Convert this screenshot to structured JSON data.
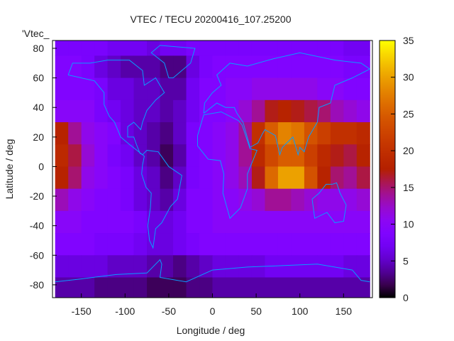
{
  "chart_data": {
    "type": "heatmap",
    "title": "VTEC / TECU 20200416_107.25200",
    "xlabel": "Longitude / deg",
    "ylabel": "Latitude / deg",
    "legend_label": "'Vtec_",
    "legend_placement": "top-left",
    "xlim": [
      -183,
      183
    ],
    "ylim": [
      -88.7,
      85.3
    ],
    "xticks": [
      -150,
      -100,
      -50,
      0,
      50,
      100,
      150
    ],
    "yticks": [
      -80,
      -60,
      -40,
      -20,
      0,
      20,
      40,
      60,
      80
    ],
    "colorbar": {
      "min": 0,
      "max": 35,
      "ticks": [
        0,
        5,
        10,
        15,
        20,
        25,
        30,
        35
      ]
    },
    "grid": false,
    "lon_centers": [
      -172.5,
      -157.5,
      -142.5,
      -127.5,
      -112.5,
      -97.5,
      -82.5,
      -67.5,
      -52.5,
      -37.5,
      -22.5,
      -7.5,
      7.5,
      22.5,
      37.5,
      52.5,
      67.5,
      82.5,
      97.5,
      112.5,
      127.5,
      142.5,
      157.5,
      172.5
    ],
    "lat_centers": [
      82.5,
      67.5,
      52.5,
      37.5,
      22.5,
      7.5,
      -7.5,
      -22.5,
      -37.5,
      -52.5,
      -67.5,
      -82.5
    ],
    "cell_size_deg": 15,
    "values": [
      [
        8,
        8,
        8,
        8,
        7,
        7,
        7,
        6,
        7,
        7,
        8,
        8,
        8,
        8,
        8,
        8,
        8,
        8,
        8,
        8,
        8,
        8,
        7,
        7
      ],
      [
        9,
        9,
        8,
        6,
        5,
        4,
        4,
        4,
        3,
        3,
        6,
        8,
        9,
        9,
        9,
        9,
        9,
        9,
        9,
        9,
        9,
        9,
        8,
        8
      ],
      [
        9,
        9,
        9,
        8,
        6,
        6,
        5,
        5,
        4,
        4,
        7,
        9,
        9,
        10,
        10,
        11,
        11,
        11,
        11,
        11,
        10,
        10,
        9,
        9
      ],
      [
        10,
        10,
        10,
        8,
        7,
        6,
        5,
        5,
        4,
        5,
        7,
        9,
        9,
        10,
        12,
        14,
        17,
        18,
        17,
        16,
        15,
        13,
        12,
        11
      ],
      [
        18,
        14,
        11,
        10,
        9,
        6,
        5,
        4,
        3,
        5,
        8,
        9,
        10,
        11,
        14,
        20,
        25,
        28,
        27,
        24,
        22,
        20,
        20,
        19
      ],
      [
        19,
        16,
        12,
        10,
        8,
        7,
        5,
        4,
        2,
        4,
        8,
        9,
        10,
        11,
        14,
        19,
        23,
        25,
        25,
        22,
        19,
        17,
        16,
        18
      ],
      [
        18,
        15,
        11,
        10,
        9,
        8,
        6,
        5,
        3,
        5,
        8,
        9,
        10,
        11,
        13,
        17,
        26,
        30,
        30,
        24,
        18,
        15,
        14,
        16
      ],
      [
        13,
        11,
        10,
        9,
        9,
        8,
        6,
        5,
        4,
        6,
        9,
        9,
        10,
        10,
        11,
        12,
        14,
        14,
        13,
        12,
        11,
        11,
        11,
        12
      ],
      [
        10,
        10,
        9,
        9,
        9,
        9,
        8,
        6,
        6,
        7,
        9,
        9,
        10,
        10,
        10,
        10,
        10,
        10,
        10,
        10,
        10,
        10,
        10,
        10
      ],
      [
        9,
        9,
        9,
        8,
        8,
        8,
        7,
        6,
        6,
        7,
        8,
        9,
        9,
        9,
        9,
        9,
        9,
        9,
        9,
        9,
        9,
        9,
        9,
        9
      ],
      [
        6,
        6,
        6,
        6,
        5,
        5,
        5,
        4,
        4,
        3,
        4,
        5,
        6,
        6,
        6,
        6,
        7,
        7,
        7,
        7,
        7,
        7,
        6,
        6
      ],
      [
        4,
        4,
        4,
        3,
        3,
        3,
        3,
        2,
        2,
        2,
        3,
        3,
        4,
        4,
        4,
        4,
        4,
        4,
        4,
        4,
        4,
        4,
        4,
        4
      ]
    ],
    "coastlines": [
      [
        [
          -165,
          62
        ],
        [
          -160,
          70
        ],
        [
          -140,
          70
        ],
        [
          -120,
          72
        ],
        [
          -95,
          72
        ],
        [
          -80,
          65
        ],
        [
          -78,
          55
        ],
        [
          -65,
          60
        ],
        [
          -55,
          50
        ],
        [
          -65,
          45
        ],
        [
          -75,
          38
        ],
        [
          -80,
          30
        ],
        [
          -82,
          25
        ],
        [
          -90,
          30
        ],
        [
          -97,
          27
        ],
        [
          -97,
          20
        ],
        [
          -90,
          20
        ],
        [
          -87,
          15
        ],
        [
          -83,
          9
        ],
        [
          -80,
          8
        ],
        [
          -95,
          15
        ],
        [
          -105,
          20
        ],
        [
          -112,
          30
        ],
        [
          -118,
          34
        ],
        [
          -124,
          42
        ],
        [
          -124,
          50
        ],
        [
          -135,
          58
        ],
        [
          -150,
          60
        ],
        [
          -165,
          62
        ]
      ],
      [
        [
          -80,
          8
        ],
        [
          -75,
          11
        ],
        [
          -62,
          10
        ],
        [
          -50,
          0
        ],
        [
          -35,
          -6
        ],
        [
          -40,
          -22
        ],
        [
          -48,
          -27
        ],
        [
          -58,
          -38
        ],
        [
          -65,
          -42
        ],
        [
          -68,
          -55
        ],
        [
          -72,
          -50
        ],
        [
          -74,
          -40
        ],
        [
          -71,
          -28
        ],
        [
          -70,
          -18
        ],
        [
          -76,
          -14
        ],
        [
          -81,
          -5
        ],
        [
          -80,
          1
        ],
        [
          -78,
          7
        ],
        [
          -80,
          8
        ]
      ],
      [
        [
          -50,
          60
        ],
        [
          -45,
          60
        ],
        [
          -25,
          70
        ],
        [
          -20,
          80
        ],
        [
          -60,
          82
        ],
        [
          -70,
          77
        ],
        [
          -55,
          70
        ],
        [
          -50,
          60
        ]
      ],
      [
        [
          -17,
          21
        ],
        [
          -10,
          35
        ],
        [
          10,
          37
        ],
        [
          30,
          31
        ],
        [
          34,
          28
        ],
        [
          43,
          12
        ],
        [
          51,
          11
        ],
        [
          40,
          -5
        ],
        [
          40,
          -15
        ],
        [
          32,
          -28
        ],
        [
          20,
          -35
        ],
        [
          12,
          -18
        ],
        [
          13,
          -5
        ],
        [
          9,
          4
        ],
        [
          -5,
          5
        ],
        [
          -17,
          14
        ],
        [
          -17,
          21
        ]
      ],
      [
        [
          -10,
          36
        ],
        [
          -9,
          43
        ],
        [
          0,
          50
        ],
        [
          10,
          55
        ],
        [
          5,
          62
        ],
        [
          20,
          70
        ],
        [
          40,
          68
        ],
        [
          70,
          73
        ],
        [
          100,
          77
        ],
        [
          140,
          72
        ],
        [
          170,
          70
        ],
        [
          180,
          66
        ],
        [
          160,
          60
        ],
        [
          140,
          55
        ],
        [
          135,
          43
        ],
        [
          122,
          40
        ],
        [
          120,
          30
        ],
        [
          110,
          20
        ],
        [
          105,
          10
        ],
        [
          100,
          13
        ],
        [
          98,
          8
        ],
        [
          92,
          20
        ],
        [
          80,
          13
        ],
        [
          77,
          8
        ],
        [
          72,
          21
        ],
        [
          60,
          25
        ],
        [
          57,
          22
        ],
        [
          52,
          16
        ],
        [
          43,
          13
        ],
        [
          35,
          30
        ],
        [
          28,
          36
        ],
        [
          25,
          40
        ],
        [
          15,
          40
        ],
        [
          5,
          43
        ],
        [
          -10,
          36
        ]
      ],
      [
        [
          114,
          -22
        ],
        [
          122,
          -18
        ],
        [
          130,
          -12
        ],
        [
          137,
          -12
        ],
        [
          142,
          -11
        ],
        [
          146,
          -18
        ],
        [
          153,
          -26
        ],
        [
          150,
          -37
        ],
        [
          140,
          -38
        ],
        [
          131,
          -31
        ],
        [
          117,
          -35
        ],
        [
          114,
          -22
        ]
      ],
      [
        [
          -180,
          -78
        ],
        [
          -150,
          -76
        ],
        [
          -110,
          -73
        ],
        [
          -75,
          -72
        ],
        [
          -60,
          -63
        ],
        [
          -58,
          -66
        ],
        [
          -60,
          -75
        ],
        [
          -30,
          -78
        ],
        [
          0,
          -70
        ],
        [
          40,
          -68
        ],
        [
          80,
          -67
        ],
        [
          120,
          -66
        ],
        [
          160,
          -70
        ],
        [
          170,
          -77
        ],
        [
          180,
          -78
        ]
      ]
    ]
  }
}
